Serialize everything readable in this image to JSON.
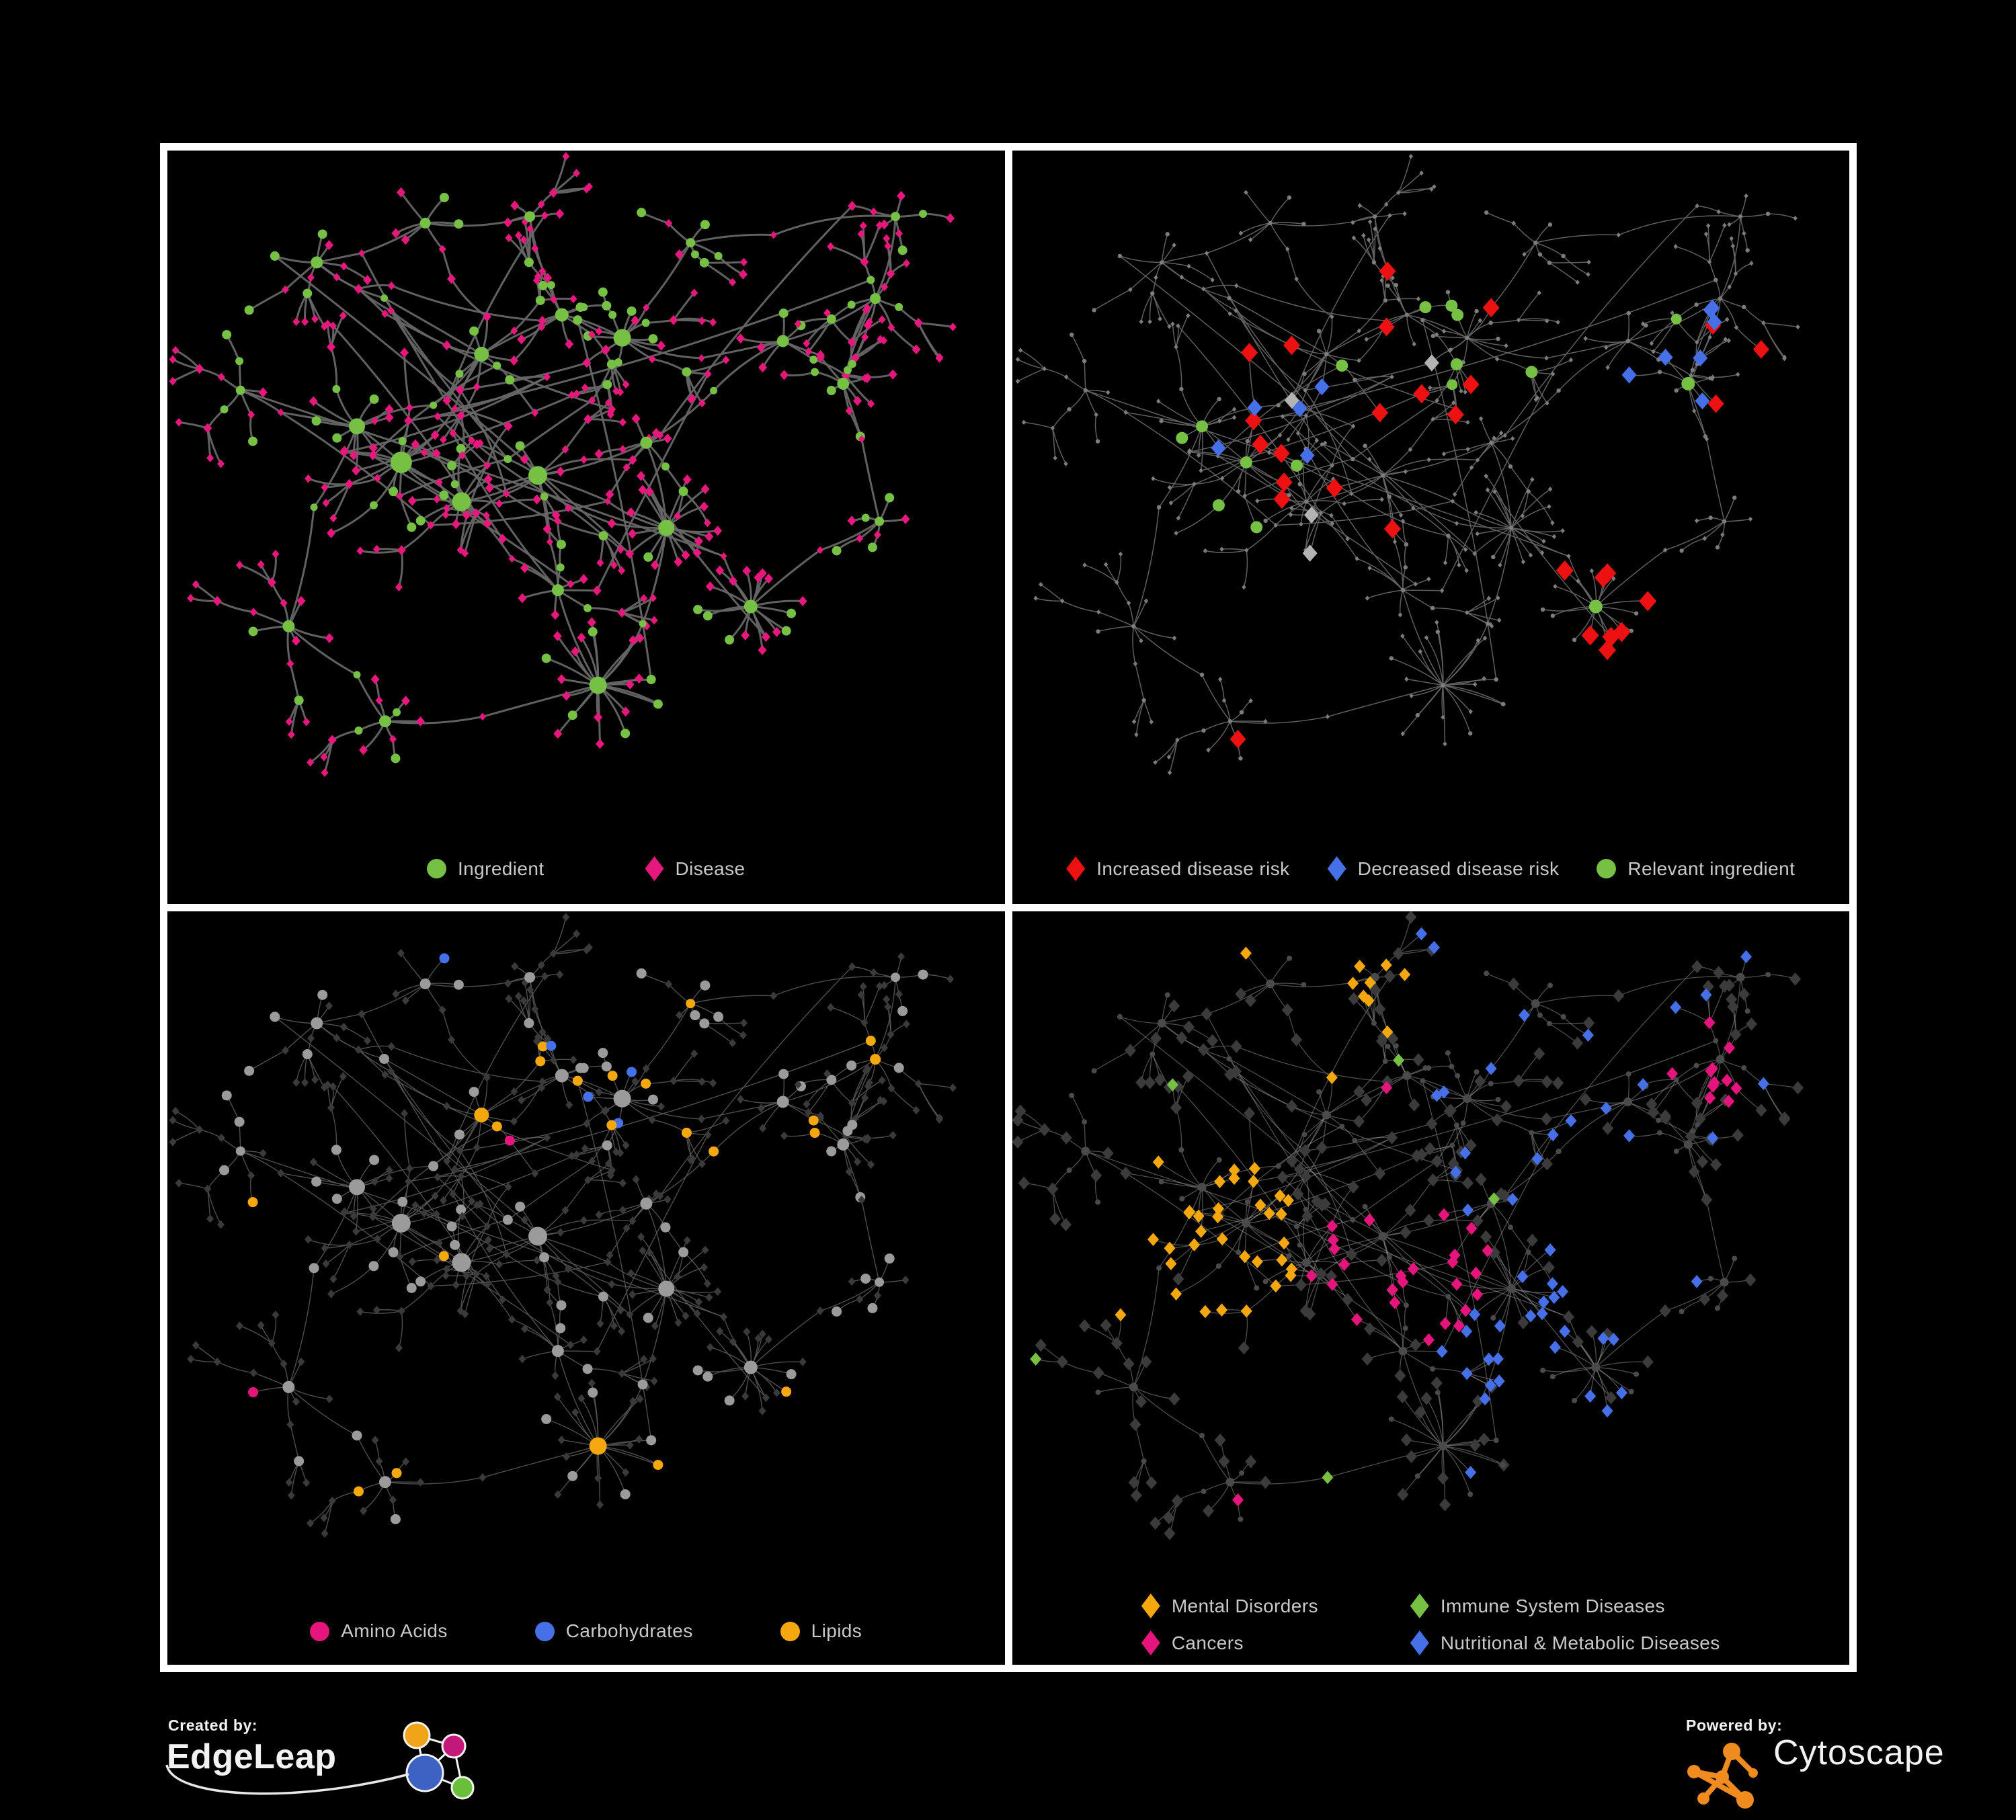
{
  "panels": [
    {
      "legend": [
        {
          "label": "Ingredient",
          "shape": "circle",
          "color": "#76c043"
        },
        {
          "label": "Disease",
          "shape": "diamond",
          "color": "#e6187e"
        }
      ],
      "net": {
        "edge": "#666666",
        "edgeWidth": 3.0,
        "edgeOpacity": 0.95,
        "circle": "#76c043",
        "diamond": "#e6187e"
      }
    },
    {
      "legend": [
        {
          "label": "Increased disease risk",
          "shape": "diamond",
          "color": "#ee1111"
        },
        {
          "label": "Decreased disease risk",
          "shape": "diamond",
          "color": "#4570e8"
        },
        {
          "label": "Relevant ingredient",
          "shape": "circle",
          "color": "#76c043"
        }
      ],
      "net": {
        "edge": "#646464",
        "edgeWidth": 1.5,
        "edgeOpacity": 0.95,
        "base": "#7d7d7d",
        "red": "#ee1111",
        "blue": "#4570e8",
        "silver": "#b3b3b3",
        "green": "#76c043"
      }
    },
    {
      "legend": [
        {
          "label": "Amino Acids",
          "shape": "circle",
          "color": "#e6147d"
        },
        {
          "label": "Carbohydrates",
          "shape": "circle",
          "color": "#4570e8"
        },
        {
          "label": "Lipids",
          "shape": "circle",
          "color": "#f5a80d"
        }
      ],
      "net": {
        "edge": "#5c5c5c",
        "edgeWidth": 1.4,
        "edgeOpacity": 0.85,
        "circle": "#9b9b9b",
        "diamond": "#3a3a3a",
        "orange": "#f5a80d",
        "blue": "#4570e8",
        "pink": "#e6147d"
      }
    },
    {
      "legend": [
        {
          "label": "Mental Disorders",
          "shape": "diamond",
          "color": "#f5a80d"
        },
        {
          "label": "Immune System Diseases",
          "shape": "diamond",
          "color": "#76c043"
        },
        {
          "label": "Cancers",
          "shape": "diamond",
          "color": "#e6147d"
        },
        {
          "label": "Nutritional & Metabolic Diseases",
          "shape": "diamond",
          "color": "#4570e8"
        }
      ],
      "net": {
        "edge": "#9a9a9a",
        "edgeWidth": 1.3,
        "edgeOpacity": 0.5,
        "circle": "#4a4a4a",
        "diamond": "#3b3b3b",
        "orange": "#f5a80d",
        "pink": "#e6147d",
        "blue": "#4570e8",
        "green": "#76c043"
      }
    }
  ],
  "branding": {
    "created_by": "Created by:",
    "brand_name": "EdgeLeap",
    "powered_by": "Powered by:",
    "engine_name": "Cytoscape",
    "edgeleap_colors": {
      "orange": "#f0a519",
      "magenta": "#c2187a",
      "blue": "#3d62c4",
      "green": "#6abf3a",
      "line": "#f2f2f2"
    },
    "cytoscape_color": "#ef8b1f"
  },
  "frame": {
    "border_color": "#ffffff",
    "background": "#000000",
    "legend_text_color": "#c9c9c9"
  }
}
